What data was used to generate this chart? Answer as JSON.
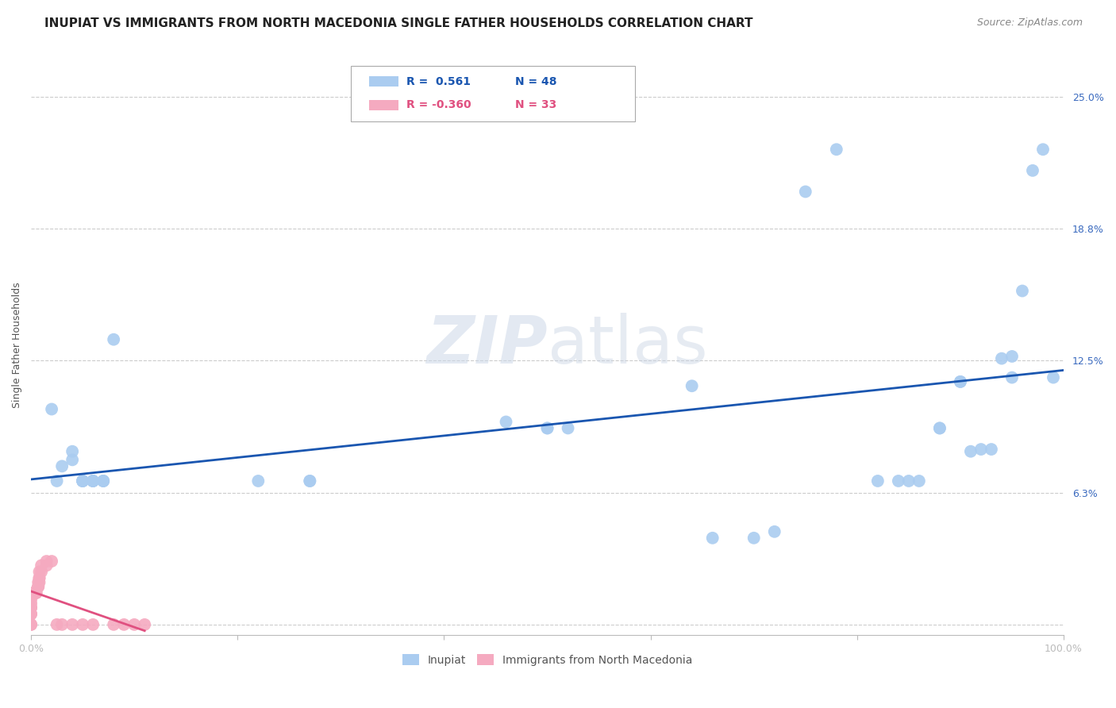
{
  "title": "INUPIAT VS IMMIGRANTS FROM NORTH MACEDONIA SINGLE FATHER HOUSEHOLDS CORRELATION CHART",
  "source": "Source: ZipAtlas.com",
  "ylabel": "Single Father Households",
  "xlim": [
    0,
    1.0
  ],
  "ylim": [
    -0.005,
    0.27
  ],
  "yticks": [
    0.0,
    0.0625,
    0.125,
    0.1875,
    0.25
  ],
  "ytick_labels": [
    "",
    "6.3%",
    "12.5%",
    "18.8%",
    "25.0%"
  ],
  "xticks": [
    0.0,
    0.2,
    0.4,
    0.6,
    0.8,
    1.0
  ],
  "xtick_labels": [
    "0.0%",
    "",
    "",
    "",
    "",
    "100.0%"
  ],
  "inupiat_r": 0.561,
  "inupiat_n": 48,
  "macedonia_r": -0.36,
  "macedonia_n": 33,
  "inupiat_color": "#aaccf0",
  "inupiat_line_color": "#1a56b0",
  "macedonia_color": "#f5aac0",
  "macedonia_line_color": "#e05080",
  "watermark_zip": "ZIP",
  "watermark_atlas": "atlas",
  "inupiat_x": [
    0.02,
    0.025,
    0.03,
    0.04,
    0.04,
    0.05,
    0.05,
    0.05,
    0.05,
    0.06,
    0.06,
    0.06,
    0.06,
    0.07,
    0.07,
    0.07,
    0.08,
    0.22,
    0.27,
    0.27,
    0.46,
    0.5,
    0.5,
    0.52,
    0.64,
    0.66,
    0.7,
    0.72,
    0.75,
    0.78,
    0.82,
    0.84,
    0.85,
    0.86,
    0.88,
    0.88,
    0.9,
    0.9,
    0.91,
    0.92,
    0.93,
    0.94,
    0.95,
    0.95,
    0.96,
    0.97,
    0.98,
    0.99
  ],
  "inupiat_y": [
    0.102,
    0.068,
    0.075,
    0.078,
    0.082,
    0.068,
    0.068,
    0.068,
    0.068,
    0.068,
    0.068,
    0.068,
    0.068,
    0.068,
    0.068,
    0.068,
    0.135,
    0.068,
    0.068,
    0.068,
    0.096,
    0.093,
    0.093,
    0.093,
    0.113,
    0.041,
    0.041,
    0.044,
    0.205,
    0.225,
    0.068,
    0.068,
    0.068,
    0.068,
    0.093,
    0.093,
    0.115,
    0.115,
    0.082,
    0.083,
    0.083,
    0.126,
    0.127,
    0.117,
    0.158,
    0.215,
    0.225,
    0.117
  ],
  "macedonia_x": [
    0.0,
    0.0,
    0.0,
    0.0,
    0.0,
    0.0,
    0.0,
    0.0,
    0.0,
    0.005,
    0.005,
    0.007,
    0.007,
    0.007,
    0.007,
    0.008,
    0.008,
    0.008,
    0.008,
    0.01,
    0.01,
    0.015,
    0.015,
    0.02,
    0.025,
    0.03,
    0.04,
    0.05,
    0.06,
    0.08,
    0.09,
    0.1,
    0.11
  ],
  "macedonia_y": [
    0.0,
    0.0,
    0.005,
    0.005,
    0.008,
    0.008,
    0.01,
    0.012,
    0.015,
    0.015,
    0.015,
    0.018,
    0.018,
    0.018,
    0.02,
    0.02,
    0.022,
    0.022,
    0.025,
    0.025,
    0.028,
    0.028,
    0.03,
    0.03,
    0.0,
    0.0,
    0.0,
    0.0,
    0.0,
    0.0,
    0.0,
    0.0,
    0.0
  ],
  "legend_label_inupiat": "Inupiat",
  "legend_label_macedonia": "Immigrants from North Macedonia",
  "title_fontsize": 11,
  "axis_label_fontsize": 9,
  "tick_fontsize": 9,
  "background_color": "#ffffff",
  "grid_color": "#cccccc"
}
